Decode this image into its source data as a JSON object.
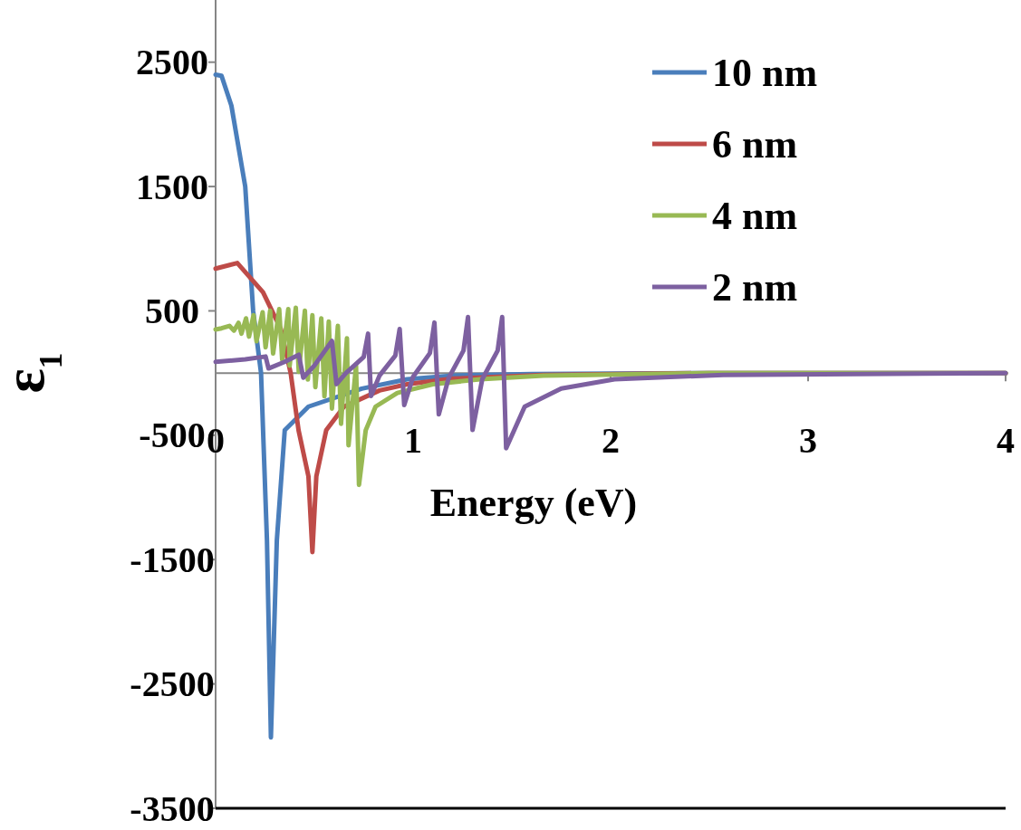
{
  "chart_data": {
    "type": "line",
    "xlabel": "Energy (eV)",
    "ylabel": "ε$_{1}$",
    "xlim": [
      0,
      4
    ],
    "xticks": [
      0,
      1,
      2,
      3,
      4
    ],
    "ylim": [
      -3500,
      3000
    ],
    "yticks": [
      -3500,
      -2500,
      -1500,
      -500,
      500,
      1500,
      2500
    ],
    "grid": false,
    "legend": "top right",
    "marker": "none",
    "line_style": "solid",
    "series": [
      {
        "name": "10 nm",
        "color": "#4a7ebb",
        "x": [
          0,
          0.03,
          0.08,
          0.15,
          0.19,
          0.23,
          0.26,
          0.28,
          0.31,
          0.35,
          0.47,
          0.74,
          0.97,
          1.2,
          1.6,
          2.5,
          4
        ],
        "values": [
          2400,
          2390,
          2150,
          1500,
          500,
          0,
          -1345,
          -2930,
          -1345,
          -460,
          -270,
          -125,
          -50,
          -20,
          -8,
          0,
          0
        ]
      },
      {
        "name": "6 nm",
        "color": "#be4b48",
        "x": [
          0,
          0.11,
          0.24,
          0.33,
          0.38,
          0.42,
          0.47,
          0.49,
          0.51,
          0.56,
          0.65,
          0.83,
          0.97,
          1.2,
          1.66,
          2.5,
          4
        ],
        "values": [
          840,
          885,
          650,
          355,
          0,
          -460,
          -830,
          -1440,
          -830,
          -460,
          -270,
          -140,
          -90,
          -45,
          -15,
          0,
          0
        ]
      },
      {
        "name": "4 nm",
        "color": "#98b954",
        "x": [
          0,
          0.03,
          0.07,
          0.093,
          0.116,
          0.131,
          0.154,
          0.169,
          0.192,
          0.207,
          0.238,
          0.253,
          0.276,
          0.291,
          0.322,
          0.337,
          0.368,
          0.375,
          0.406,
          0.421,
          0.452,
          0.467,
          0.49,
          0.505,
          0.535,
          0.551,
          0.573,
          0.589,
          0.619,
          0.635,
          0.665,
          0.673,
          0.711,
          0.726,
          0.76,
          0.81,
          0.92,
          1.1,
          1.34,
          1.66,
          2.5,
          4
        ],
        "values": [
          350,
          360,
          379,
          342,
          404,
          317,
          440,
          293,
          465,
          256,
          489,
          207,
          502,
          157,
          514,
          108,
          514,
          59,
          526,
          10,
          502,
          -52,
          465,
          -113,
          440,
          -187,
          415,
          -286,
          379,
          -408,
          280,
          -581,
          59,
          -900,
          -460,
          -270,
          -160,
          -90,
          -50,
          -20,
          0,
          0
        ]
      },
      {
        "name": "2 nm",
        "color": "#7d60a0",
        "x": [
          0,
          0.15,
          0.253,
          0.268,
          0.35,
          0.421,
          0.444,
          0.5,
          0.589,
          0.612,
          0.66,
          0.75,
          0.772,
          0.787,
          0.83,
          0.91,
          0.932,
          0.955,
          1.0,
          1.085,
          1.108,
          1.13,
          1.18,
          1.255,
          1.278,
          1.301,
          1.35,
          1.428,
          1.451,
          1.471,
          1.565,
          1.75,
          2.02,
          2.57,
          4
        ],
        "values": [
          90,
          110,
          133,
          37,
          90,
          147,
          -37,
          60,
          258,
          -89,
          0,
          130,
          317,
          -185,
          -20,
          140,
          354,
          -258,
          -30,
          160,
          406,
          -332,
          -40,
          180,
          450,
          -458,
          -50,
          180,
          450,
          -605,
          -270,
          -125,
          -50,
          -15,
          0
        ]
      }
    ]
  }
}
